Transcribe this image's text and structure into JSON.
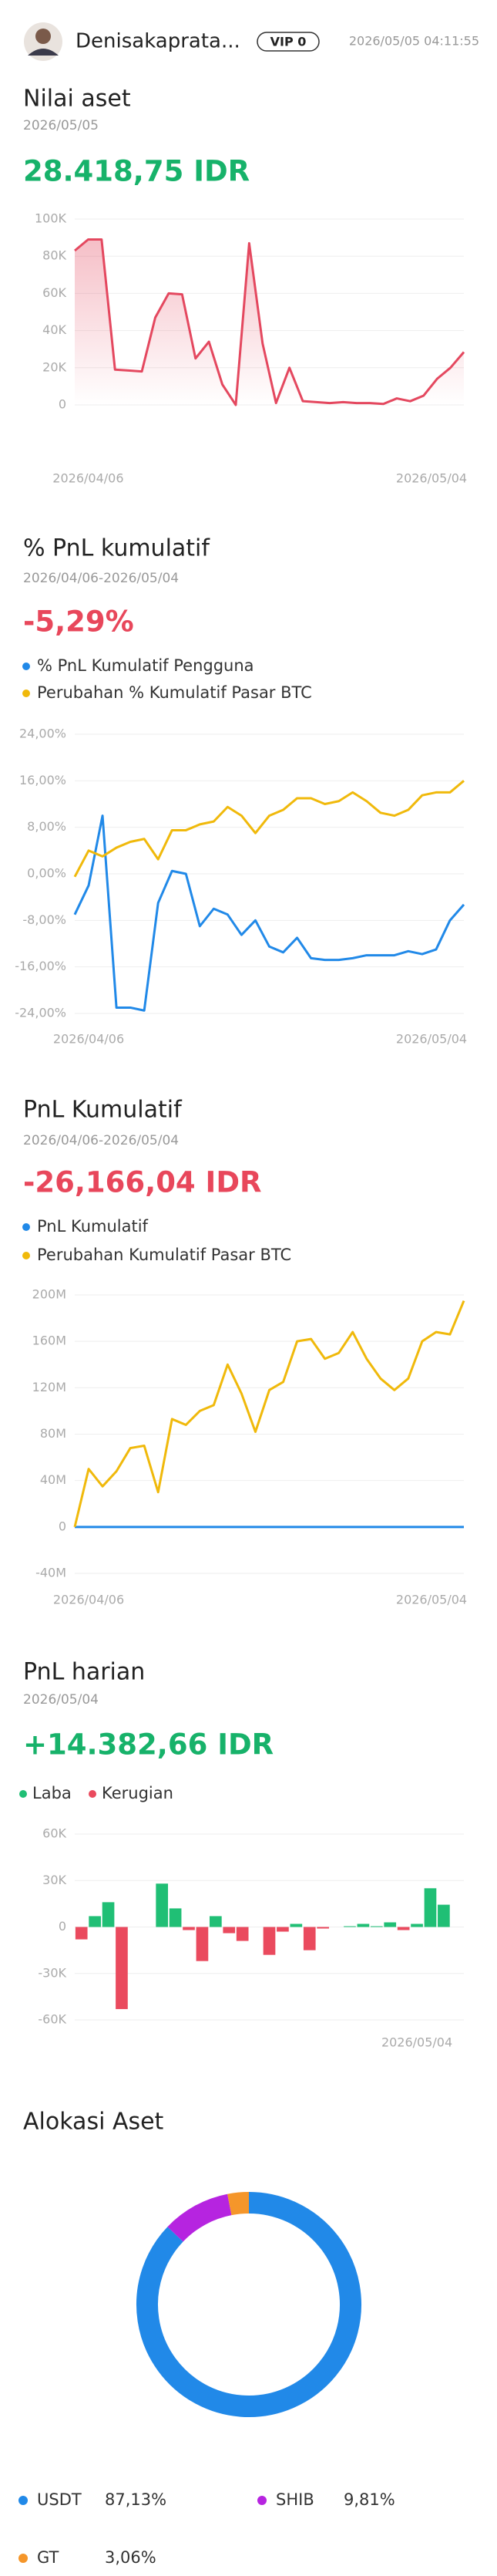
{
  "header": {
    "name": "Denisakaprata...",
    "vip": "VIP 0",
    "time": "2026/05/05 04:11:55"
  },
  "chart_data": [
    {
      "type": "area",
      "title": "Nilai aset",
      "subtitle": "2026/05/05",
      "headline": "28.418,75 IDR",
      "categories": [
        null,
        "2026/04/06",
        null,
        null,
        null,
        null,
        null,
        null,
        null,
        null,
        null,
        null,
        null,
        null,
        null,
        null,
        null,
        null,
        null,
        null,
        null,
        null,
        null,
        null,
        null,
        null,
        null,
        null,
        null,
        "2026/05/04"
      ],
      "series": [
        {
          "name": "Nilai aset",
          "color": "#e4485f",
          "values": [
            83000,
            89000,
            89000,
            19000,
            18500,
            18000,
            47000,
            60000,
            59500,
            25000,
            34000,
            11000,
            0,
            87000,
            33000,
            1000,
            20000,
            2000,
            1500,
            1000,
            1500,
            1000,
            1000,
            500,
            3500,
            2000,
            5000,
            14000,
            20000,
            28418.75
          ]
        }
      ],
      "ylim": [
        0,
        100000
      ],
      "yticks": [
        0,
        {
          "value": 20000,
          "label": "20K"
        },
        {
          "value": 40000,
          "label": "40K"
        },
        {
          "value": 60000,
          "label": "60K"
        },
        {
          "value": 80000,
          "label": "80K"
        },
        {
          "value": 100000,
          "label": "100K"
        }
      ],
      "grid": true
    },
    {
      "type": "line",
      "title": "% PnL kumulatif",
      "subtitle": "2026/04/06-2026/05/04",
      "headline": "-5,29%",
      "categories": [
        null,
        "2026/04/06",
        null,
        null,
        null,
        null,
        null,
        null,
        null,
        null,
        null,
        null,
        null,
        null,
        null,
        null,
        null,
        null,
        null,
        null,
        null,
        null,
        null,
        null,
        null,
        null,
        null,
        null,
        "2026/05/04"
      ],
      "series": [
        {
          "name": "% PnL Kumulatif Pengguna",
          "color": "#2189e8",
          "values": [
            -7,
            -2,
            10,
            -23,
            -23,
            -23.5,
            -5,
            0.5,
            0,
            -9,
            -6,
            -7,
            -10.5,
            -8,
            -12.5,
            -13.5,
            -11,
            -14.5,
            -14.8,
            -14.8,
            -14.5,
            -14,
            -14,
            -14,
            -13.3,
            -13.8,
            -13,
            -8,
            -5.29
          ]
        },
        {
          "name": "Perubahan % Kumulatif Pasar BTC",
          "color": "#f0b90b",
          "values": [
            -0.5,
            4,
            3,
            4.5,
            5.5,
            6,
            2.5,
            7.5,
            7.5,
            8.5,
            9,
            11.5,
            10,
            7,
            10,
            11,
            13,
            13,
            12,
            12.5,
            14,
            12.5,
            10.5,
            10,
            11,
            13.5,
            14,
            14,
            16
          ]
        }
      ],
      "ylim": [
        -24,
        24
      ],
      "yticks": [
        {
          "value": -24,
          "label": "-24,00%"
        },
        {
          "value": -16,
          "label": "-16,00%"
        },
        {
          "value": -8,
          "label": "-8,00%"
        },
        {
          "value": 0,
          "label": "0,00%"
        },
        {
          "value": 8,
          "label": "8,00%"
        },
        {
          "value": 16,
          "label": "16,00%"
        },
        {
          "value": 24,
          "label": "24,00%"
        }
      ],
      "grid": true
    },
    {
      "type": "line",
      "title": "PnL Kumulatif",
      "subtitle": "2026/04/06-2026/05/04",
      "headline": "-26,166,04 IDR",
      "categories": [
        null,
        "2026/04/06",
        null,
        null,
        null,
        null,
        null,
        null,
        null,
        null,
        null,
        null,
        null,
        null,
        null,
        null,
        null,
        null,
        null,
        null,
        null,
        null,
        null,
        null,
        null,
        null,
        null,
        null,
        "2026/05/04"
      ],
      "series": [
        {
          "name": "PnL Kumulatif",
          "color": "#2189e8",
          "values": [
            0,
            -1000,
            -2000,
            -15000,
            -15000,
            -15500,
            -4000,
            0,
            0,
            -6000,
            -4000,
            -5000,
            -7000,
            -5500,
            -8500,
            -9500,
            -8000,
            -10000,
            -10500,
            -10500,
            -10000,
            -10000,
            -10000,
            -10000,
            -9500,
            -9800,
            -9200,
            -20000,
            -26166.04
          ]
        },
        {
          "name": "Perubahan Kumulatif Pasar BTC",
          "color": "#f0b90b",
          "values": [
            0,
            50000000,
            35000000,
            48000000,
            68000000,
            70000000,
            30000000,
            93000000,
            88000000,
            100000000,
            105000000,
            140000000,
            115000000,
            82000000,
            118000000,
            125000000,
            160000000,
            162000000,
            145000000,
            150000000,
            168000000,
            145000000,
            128000000,
            118000000,
            128000000,
            160000000,
            168000000,
            166000000,
            195000000
          ]
        }
      ],
      "ylim": [
        -40000000,
        200000000
      ],
      "yticks": [
        {
          "value": -40000000,
          "label": "-40M"
        },
        0,
        {
          "value": 40000000,
          "label": "40M"
        },
        {
          "value": 80000000,
          "label": "80M"
        },
        {
          "value": 120000000,
          "label": "120M"
        },
        {
          "value": 160000000,
          "label": "160M"
        },
        {
          "value": 200000000,
          "label": "200M"
        }
      ],
      "grid": true
    },
    {
      "type": "bar",
      "title": "PnL harian",
      "subtitle": "2026/05/04",
      "headline": "+14.382,66 IDR",
      "categories": [
        null,
        null,
        null,
        null,
        null,
        null,
        null,
        null,
        null,
        null,
        null,
        null,
        null,
        null,
        null,
        null,
        null,
        null,
        null,
        null,
        null,
        null,
        null,
        null,
        null,
        "2026/05/04",
        null,
        null,
        null
      ],
      "series": [
        {
          "name": "Laba",
          "color": "#20bf75",
          "values": [
            null,
            7000,
            16000,
            null,
            null,
            null,
            28000,
            12000,
            null,
            null,
            7000,
            null,
            null,
            null,
            null,
            null,
            2000,
            null,
            null,
            null,
            500,
            2000,
            500,
            3000,
            null,
            2000,
            25000,
            14382.66,
            null
          ]
        },
        {
          "name": "Kerugian",
          "color": "#ea4a5e",
          "values": [
            -8000,
            null,
            null,
            -53000,
            null,
            null,
            null,
            null,
            -2000,
            -22000,
            null,
            -4000,
            -9000,
            null,
            -18000,
            -3000,
            null,
            -15000,
            -1000,
            null,
            null,
            null,
            null,
            null,
            -2000,
            null,
            null,
            null,
            null
          ]
        }
      ],
      "ylim": [
        -60000,
        60000
      ],
      "yticks": [
        {
          "value": -60000,
          "label": "-60K"
        },
        {
          "value": -30000,
          "label": "-30K"
        },
        0,
        {
          "value": 30000,
          "label": "30K"
        },
        {
          "value": 60000,
          "label": "60K"
        }
      ],
      "grid": true
    },
    {
      "type": "pie",
      "title": "Alokasi Aset",
      "categories": [
        "USDT",
        "SHIB",
        "GT"
      ],
      "values": [
        87.13,
        9.81,
        3.06
      ],
      "value_labels": [
        "87,13%",
        "9,81%",
        "3,06%"
      ],
      "colors": [
        "#2189e8",
        "#b624e0",
        "#f5962a"
      ]
    }
  ]
}
